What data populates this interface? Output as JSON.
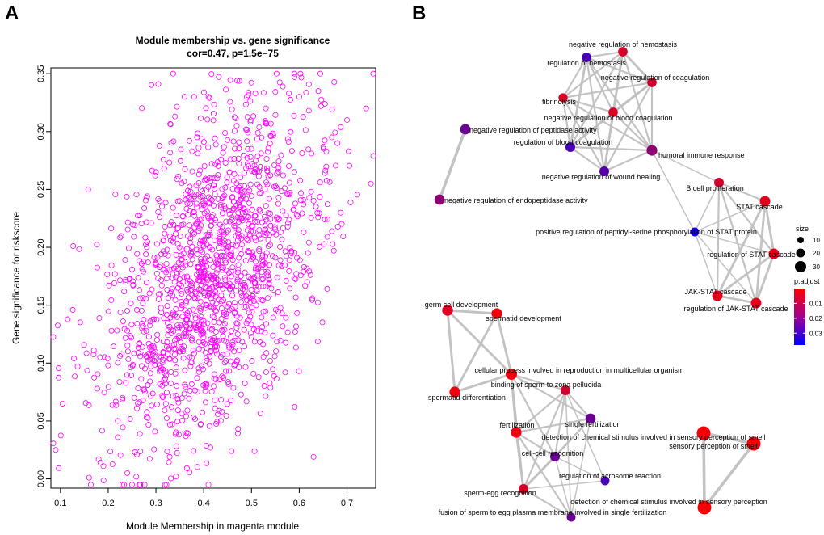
{
  "chart_data": [
    {
      "type": "scatter",
      "panel_label": "A",
      "title_line1": "Module membership vs. gene significance",
      "title_line2": "cor=0.47, p=1.5e−75",
      "xlabel": "Module Membership in magenta module",
      "ylabel": "Gene significance for riskscore",
      "xlim": [
        0.08,
        0.76
      ],
      "ylim": [
        -0.008,
        0.355
      ],
      "xticks": [
        0.1,
        0.2,
        0.3,
        0.4,
        0.5,
        0.6,
        0.7
      ],
      "xtick_labels": [
        "0.1",
        "0.2",
        "0.3",
        "0.4",
        "0.5",
        "0.6",
        "0.7"
      ],
      "yticks": [
        0.0,
        0.05,
        0.1,
        0.15,
        0.2,
        0.25,
        0.3,
        0.35
      ],
      "ytick_labels": [
        "0.00",
        "0.05",
        "0.10",
        "0.15",
        "0.20",
        "0.25",
        "0.30",
        "0.35"
      ],
      "marker_color": "#ff00ff",
      "correlation": 0.47,
      "n_points": 1500,
      "points": [
        {
          "x": 0.09,
          "y": 0.025
        },
        {
          "x": 0.16,
          "y": 0.001
        },
        {
          "x": 0.17,
          "y": 0.111
        },
        {
          "x": 0.18,
          "y": 0.017
        },
        {
          "x": 0.19,
          "y": 0.011
        },
        {
          "x": 0.2,
          "y": 0.098
        },
        {
          "x": 0.22,
          "y": 0.05
        },
        {
          "x": 0.22,
          "y": 0.036
        },
        {
          "x": 0.23,
          "y": 0.07
        },
        {
          "x": 0.24,
          "y": 0.128
        },
        {
          "x": 0.24,
          "y": 0.005
        },
        {
          "x": 0.25,
          "y": 0.181
        },
        {
          "x": 0.26,
          "y": 0.021
        },
        {
          "x": 0.26,
          "y": 0.146
        },
        {
          "x": 0.27,
          "y": 0.186
        },
        {
          "x": 0.28,
          "y": 0.243
        },
        {
          "x": 0.29,
          "y": 0.221
        },
        {
          "x": 0.3,
          "y": 0.265
        },
        {
          "x": 0.305,
          "y": 0.341
        },
        {
          "x": 0.34,
          "y": 0.313
        },
        {
          "x": 0.36,
          "y": 0.33
        },
        {
          "x": 0.38,
          "y": 0.33
        },
        {
          "x": 0.41,
          "y": 0.33
        },
        {
          "x": 0.47,
          "y": 0.344
        },
        {
          "x": 0.49,
          "y": 0.33
        },
        {
          "x": 0.53,
          "y": 0.32
        },
        {
          "x": 0.59,
          "y": 0.347
        },
        {
          "x": 0.6,
          "y": 0.33
        },
        {
          "x": 0.63,
          "y": 0.019
        },
        {
          "x": 0.64,
          "y": 0.335
        },
        {
          "x": 0.68,
          "y": 0.29
        },
        {
          "x": 0.7,
          "y": 0.31
        },
        {
          "x": 0.74,
          "y": 0.32
        },
        {
          "x": 0.75,
          "y": 0.255
        }
      ]
    },
    {
      "type": "network",
      "panel_label": "B",
      "edge_color": "#c0c0c0",
      "nodes": [
        {
          "id": "neg_hemostasis",
          "label": "negative regulation of hemostasis",
          "size": 8,
          "p": 0.006
        },
        {
          "id": "reg_hemostasis",
          "label": "regulation of hemostasis",
          "size": 8,
          "p": 0.027
        },
        {
          "id": "neg_coag",
          "label": "negative regulation of coagulation",
          "size": 8,
          "p": 0.007
        },
        {
          "id": "fibrinolysis",
          "label": "fibrinolysis",
          "size": 7,
          "p": 0.006
        },
        {
          "id": "neg_blood_coag",
          "label": "negative regulation of blood coagulation",
          "size": 8,
          "p": 0.005
        },
        {
          "id": "neg_peptidase",
          "label": "negative regulation of peptidase activity",
          "size": 11,
          "p": 0.022
        },
        {
          "id": "reg_blood_coag",
          "label": "regulation of blood coagulation",
          "size": 9,
          "p": 0.027
        },
        {
          "id": "humoral",
          "label": "humoral immune response",
          "size": 13,
          "p": 0.017
        },
        {
          "id": "neg_wound",
          "label": "negative regulation of wound healing",
          "size": 9,
          "p": 0.025
        },
        {
          "id": "neg_endopeptidase",
          "label": "negative regulation of endopeptidase activity",
          "size": 11,
          "p": 0.017
        },
        {
          "id": "b_cell",
          "label": "B cell proliferation",
          "size": 9,
          "p": 0.007
        },
        {
          "id": "stat_cascade",
          "label": "STAT cascade",
          "size": 12,
          "p": 0.004
        },
        {
          "id": "peptidyl_serine",
          "label": "positive regulation of peptidyl-serine phosphorylation of STAT protein",
          "size": 6,
          "p": 0.035
        },
        {
          "id": "reg_stat",
          "label": "regulation of STAT cascade",
          "size": 12,
          "p": 0.004
        },
        {
          "id": "jak_stat",
          "label": "JAK-STAT cascade",
          "size": 12,
          "p": 0.004
        },
        {
          "id": "reg_jak_stat",
          "label": "regulation of JAK-STAT cascade",
          "size": 12,
          "p": 0.004
        },
        {
          "id": "germ_cell",
          "label": "germ cell development",
          "size": 14,
          "p": 0.005
        },
        {
          "id": "spermatid_dev",
          "label": "spermatid development",
          "size": 13,
          "p": 0.002
        },
        {
          "id": "cellular_repro",
          "label": "cellular process involved in reproduction in multicellular organism",
          "size": 16,
          "p": 0.002
        },
        {
          "id": "binding_zona",
          "label": "binding of sperm to zona pellucida",
          "size": 9,
          "p": 0.007
        },
        {
          "id": "spermatid_diff",
          "label": "spermatid differentiation",
          "size": 13,
          "p": 0.002
        },
        {
          "id": "single_fert",
          "label": "single fertilization",
          "size": 11,
          "p": 0.022
        },
        {
          "id": "fertilization",
          "label": "fertilization",
          "size": 13,
          "p": 0.002
        },
        {
          "id": "chem_smell_1",
          "label": "detection of chemical stimulus involved in sensory perception of smell",
          "size": 30,
          "p": 0.001
        },
        {
          "id": "sensory_smell",
          "label": "sensory perception of smell",
          "size": 30,
          "p": 0.001
        },
        {
          "id": "cell_cell",
          "label": "cell-cell recognition",
          "size": 9,
          "p": 0.022
        },
        {
          "id": "acrosome",
          "label": "regulation of acrosome reaction",
          "size": 6,
          "p": 0.027
        },
        {
          "id": "sperm_egg",
          "label": "sperm-egg recognition",
          "size": 9,
          "p": 0.006
        },
        {
          "id": "chem_sensory",
          "label": "detection of chemical stimulus involved in sensory perception",
          "size": 30,
          "p": 0.001
        },
        {
          "id": "fusion",
          "label": "fusion of sperm to egg plasma membrane involved in single fertilization",
          "size": 6,
          "p": 0.022
        }
      ],
      "edges": [
        {
          "source": "neg_hemostasis",
          "target": "reg_hemostasis",
          "weight": 2
        },
        {
          "source": "neg_hemostasis",
          "target": "neg_coag",
          "weight": 3
        },
        {
          "source": "neg_hemostasis",
          "target": "fibrinolysis",
          "weight": 2
        },
        {
          "source": "neg_hemostasis",
          "target": "neg_blood_coag",
          "weight": 3
        },
        {
          "source": "neg_hemostasis",
          "target": "reg_blood_coag",
          "weight": 2
        },
        {
          "source": "neg_hemostasis",
          "target": "humoral",
          "weight": 2
        },
        {
          "source": "neg_hemostasis",
          "target": "neg_wound",
          "weight": 2
        },
        {
          "source": "reg_hemostasis",
          "target": "neg_coag",
          "weight": 2
        },
        {
          "source": "reg_hemostasis",
          "target": "fibrinolysis",
          "weight": 2
        },
        {
          "source": "reg_hemostasis",
          "target": "neg_blood_coag",
          "weight": 2
        },
        {
          "source": "reg_hemostasis",
          "target": "reg_blood_coag",
          "weight": 3
        },
        {
          "source": "reg_hemostasis",
          "target": "humoral",
          "weight": 2
        },
        {
          "source": "reg_hemostasis",
          "target": "neg_wound",
          "weight": 2
        },
        {
          "source": "neg_coag",
          "target": "fibrinolysis",
          "weight": 2
        },
        {
          "source": "neg_coag",
          "target": "neg_blood_coag",
          "weight": 3
        },
        {
          "source": "neg_coag",
          "target": "reg_blood_coag",
          "weight": 2
        },
        {
          "source": "neg_coag",
          "target": "humoral",
          "weight": 2
        },
        {
          "source": "neg_coag",
          "target": "neg_wound",
          "weight": 2
        },
        {
          "source": "fibrinolysis",
          "target": "neg_blood_coag",
          "weight": 2
        },
        {
          "source": "fibrinolysis",
          "target": "reg_blood_coag",
          "weight": 2
        },
        {
          "source": "fibrinolysis",
          "target": "humoral",
          "weight": 2
        },
        {
          "source": "fibrinolysis",
          "target": "neg_wound",
          "weight": 2
        },
        {
          "source": "neg_blood_coag",
          "target": "reg_blood_coag",
          "weight": 3
        },
        {
          "source": "neg_blood_coag",
          "target": "humoral",
          "weight": 2
        },
        {
          "source": "neg_blood_coag",
          "target": "neg_wound",
          "weight": 3
        },
        {
          "source": "reg_blood_coag",
          "target": "humoral",
          "weight": 2
        },
        {
          "source": "reg_blood_coag",
          "target": "neg_wound",
          "weight": 2
        },
        {
          "source": "humoral",
          "target": "neg_wound",
          "weight": 2
        },
        {
          "source": "humoral",
          "target": "peptidyl_serine",
          "weight": 1
        },
        {
          "source": "humoral",
          "target": "b_cell",
          "weight": 1
        },
        {
          "source": "neg_peptidase",
          "target": "neg_endopeptidase",
          "weight": 4
        },
        {
          "source": "b_cell",
          "target": "stat_cascade",
          "weight": 2
        },
        {
          "source": "b_cell",
          "target": "reg_stat",
          "weight": 2
        },
        {
          "source": "b_cell",
          "target": "jak_stat",
          "weight": 2
        },
        {
          "source": "b_cell",
          "target": "reg_jak_stat",
          "weight": 2
        },
        {
          "source": "b_cell",
          "target": "peptidyl_serine",
          "weight": 1
        },
        {
          "source": "stat_cascade",
          "target": "reg_stat",
          "weight": 3
        },
        {
          "source": "stat_cascade",
          "target": "jak_stat",
          "weight": 3
        },
        {
          "source": "stat_cascade",
          "target": "reg_jak_stat",
          "weight": 3
        },
        {
          "source": "stat_cascade",
          "target": "peptidyl_serine",
          "weight": 1
        },
        {
          "source": "reg_stat",
          "target": "jak_stat",
          "weight": 3
        },
        {
          "source": "reg_stat",
          "target": "reg_jak_stat",
          "weight": 3
        },
        {
          "source": "reg_stat",
          "target": "peptidyl_serine",
          "weight": 1
        },
        {
          "source": "jak_stat",
          "target": "reg_jak_stat",
          "weight": 3
        },
        {
          "source": "jak_stat",
          "target": "peptidyl_serine",
          "weight": 1
        },
        {
          "source": "reg_jak_stat",
          "target": "peptidyl_serine",
          "weight": 1
        },
        {
          "source": "germ_cell",
          "target": "spermatid_dev",
          "weight": 3
        },
        {
          "source": "germ_cell",
          "target": "cellular_repro",
          "weight": 3
        },
        {
          "source": "germ_cell",
          "target": "spermatid_diff",
          "weight": 3
        },
        {
          "source": "spermatid_dev",
          "target": "cellular_repro",
          "weight": 3
        },
        {
          "source": "spermatid_dev",
          "target": "spermatid_diff",
          "weight": 3
        },
        {
          "source": "cellular_repro",
          "target": "spermatid_diff",
          "weight": 3
        },
        {
          "source": "cellular_repro",
          "target": "binding_zona",
          "weight": 2
        },
        {
          "source": "cellular_repro",
          "target": "single_fert",
          "weight": 2
        },
        {
          "source": "cellular_repro",
          "target": "fertilization",
          "weight": 3
        },
        {
          "source": "cellular_repro",
          "target": "cell_cell",
          "weight": 2
        },
        {
          "source": "cellular_repro",
          "target": "sperm_egg",
          "weight": 2
        },
        {
          "source": "binding_zona",
          "target": "single_fert",
          "weight": 2
        },
        {
          "source": "binding_zona",
          "target": "fertilization",
          "weight": 2
        },
        {
          "source": "binding_zona",
          "target": "cell_cell",
          "weight": 2
        },
        {
          "source": "binding_zona",
          "target": "acrosome",
          "weight": 1
        },
        {
          "source": "binding_zona",
          "target": "sperm_egg",
          "weight": 2
        },
        {
          "source": "binding_zona",
          "target": "fusion",
          "weight": 1
        },
        {
          "source": "single_fert",
          "target": "fertilization",
          "weight": 2
        },
        {
          "source": "single_fert",
          "target": "cell_cell",
          "weight": 2
        },
        {
          "source": "single_fert",
          "target": "sperm_egg",
          "weight": 2
        },
        {
          "source": "single_fert",
          "target": "fusion",
          "weight": 1
        },
        {
          "source": "fertilization",
          "target": "cell_cell",
          "weight": 2
        },
        {
          "source": "fertilization",
          "target": "sperm_egg",
          "weight": 3
        },
        {
          "source": "fertilization",
          "target": "fusion",
          "weight": 2
        },
        {
          "source": "cell_cell",
          "target": "sperm_egg",
          "weight": 3
        },
        {
          "source": "cell_cell",
          "target": "acrosome",
          "weight": 1
        },
        {
          "source": "cell_cell",
          "target": "fusion",
          "weight": 1
        },
        {
          "source": "sperm_egg",
          "target": "acrosome",
          "weight": 1
        },
        {
          "source": "sperm_egg",
          "target": "fusion",
          "weight": 2
        },
        {
          "source": "chem_smell_1",
          "target": "sensory_smell",
          "weight": 4
        },
        {
          "source": "chem_smell_1",
          "target": "chem_sensory",
          "weight": 4
        },
        {
          "source": "sensory_smell",
          "target": "chem_sensory",
          "weight": 4
        }
      ],
      "legend": {
        "size_title": "size",
        "size_values": [
          10,
          20,
          30
        ],
        "size_labels": [
          "10",
          "20",
          "30"
        ],
        "color_title": "p.adjust",
        "color_ticks": [
          0.01,
          0.02,
          0.03
        ],
        "color_tick_labels": [
          "0.01",
          "0.02",
          "0.03"
        ],
        "color_min": 0,
        "color_max": 0.038,
        "color_low": "#ff0000",
        "color_high": "#0000ff"
      }
    }
  ]
}
